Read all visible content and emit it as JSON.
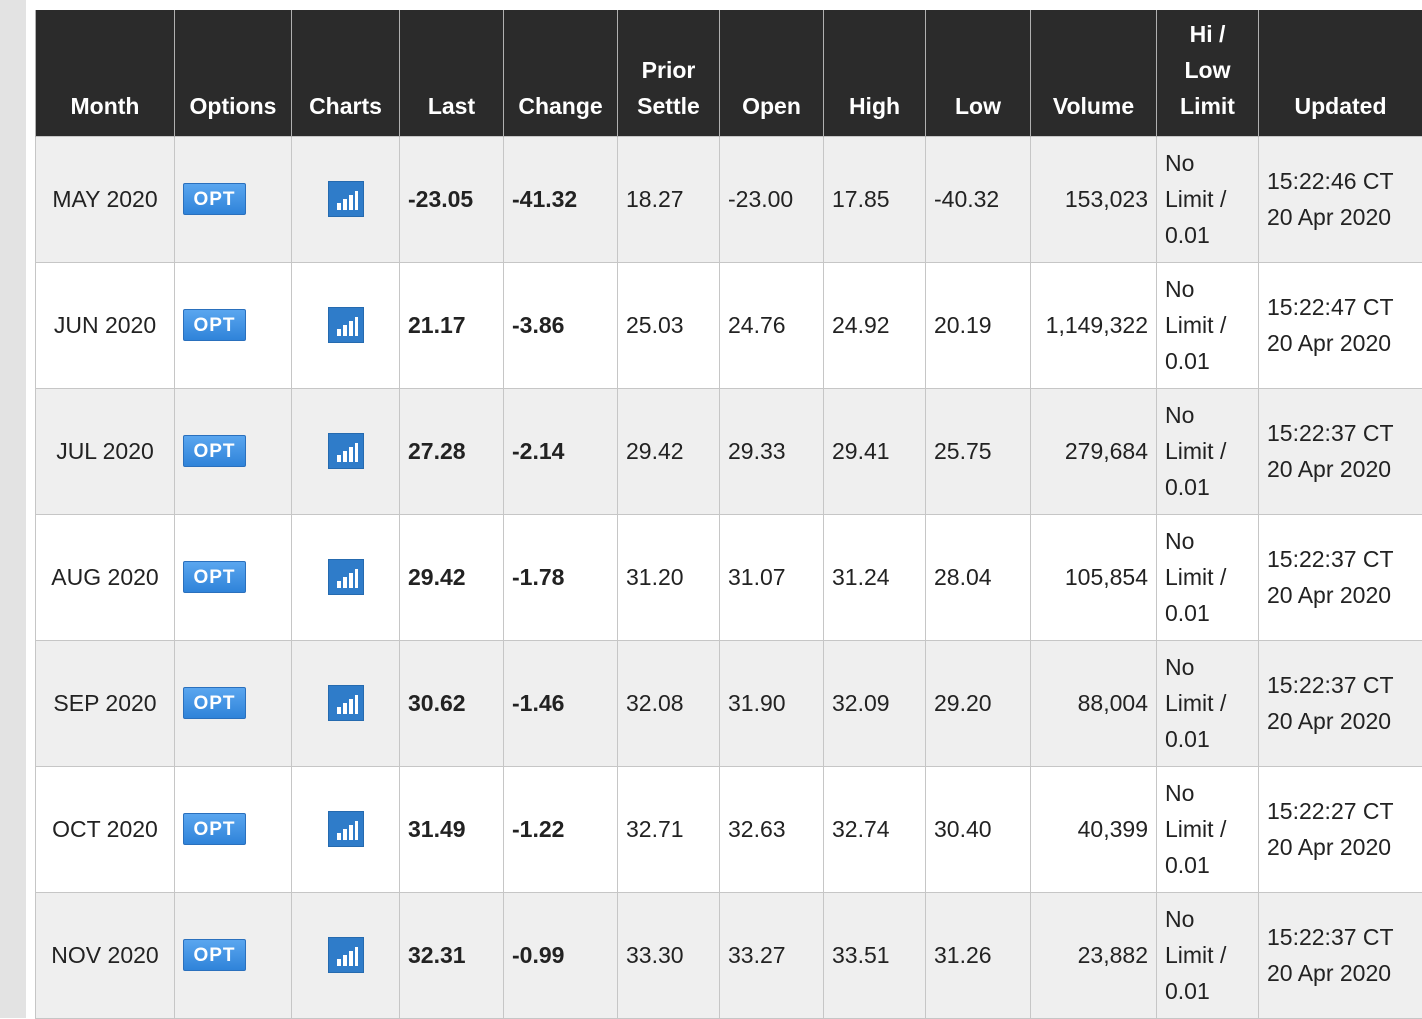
{
  "colors": {
    "header_bg": "#2b2b2b",
    "row_alt_bg": "#efefef",
    "negative": "#e8291c",
    "opt_button": "#2f83d9"
  },
  "headers": [
    {
      "key": "month",
      "lines": [
        "Month"
      ]
    },
    {
      "key": "options",
      "lines": [
        "Options"
      ]
    },
    {
      "key": "charts",
      "lines": [
        "Charts"
      ]
    },
    {
      "key": "last",
      "lines": [
        "Last"
      ]
    },
    {
      "key": "change",
      "lines": [
        "Change"
      ]
    },
    {
      "key": "prior_settle",
      "lines": [
        "Prior",
        "Settle"
      ]
    },
    {
      "key": "open",
      "lines": [
        "Open"
      ]
    },
    {
      "key": "high",
      "lines": [
        "High"
      ]
    },
    {
      "key": "low",
      "lines": [
        "Low"
      ]
    },
    {
      "key": "volume",
      "lines": [
        "Volume"
      ]
    },
    {
      "key": "hilow_limit",
      "lines": [
        "Hi /",
        "Low",
        "Limit"
      ]
    },
    {
      "key": "updated",
      "lines": [
        "Updated"
      ]
    }
  ],
  "options_button_label": "OPT",
  "charts_icon": "bar-chart-icon",
  "rows": [
    {
      "month": "MAY 2020",
      "last": "-23.05",
      "change": "-41.32",
      "prior_settle": "18.27",
      "open": "-23.00",
      "high": "17.85",
      "low": "-40.32",
      "volume": "153,023",
      "limit": [
        "No",
        "Limit /",
        "0.01"
      ],
      "updated": [
        "15:22:46 CT",
        "20 Apr 2020"
      ]
    },
    {
      "month": "JUN 2020",
      "last": "21.17",
      "change": "-3.86",
      "prior_settle": "25.03",
      "open": "24.76",
      "high": "24.92",
      "low": "20.19",
      "volume": "1,149,322",
      "limit": [
        "No",
        "Limit /",
        "0.01"
      ],
      "updated": [
        "15:22:47 CT",
        "20 Apr 2020"
      ]
    },
    {
      "month": "JUL 2020",
      "last": "27.28",
      "change": "-2.14",
      "prior_settle": "29.42",
      "open": "29.33",
      "high": "29.41",
      "low": "25.75",
      "volume": "279,684",
      "limit": [
        "No",
        "Limit /",
        "0.01"
      ],
      "updated": [
        "15:22:37 CT",
        "20 Apr 2020"
      ]
    },
    {
      "month": "AUG 2020",
      "last": "29.42",
      "change": "-1.78",
      "prior_settle": "31.20",
      "open": "31.07",
      "high": "31.24",
      "low": "28.04",
      "volume": "105,854",
      "limit": [
        "No",
        "Limit /",
        "0.01"
      ],
      "updated": [
        "15:22:37 CT",
        "20 Apr 2020"
      ]
    },
    {
      "month": "SEP 2020",
      "last": "30.62",
      "change": "-1.46",
      "prior_settle": "32.08",
      "open": "31.90",
      "high": "32.09",
      "low": "29.20",
      "volume": "88,004",
      "limit": [
        "No",
        "Limit /",
        "0.01"
      ],
      "updated": [
        "15:22:37 CT",
        "20 Apr 2020"
      ]
    },
    {
      "month": "OCT 2020",
      "last": "31.49",
      "change": "-1.22",
      "prior_settle": "32.71",
      "open": "32.63",
      "high": "32.74",
      "low": "30.40",
      "volume": "40,399",
      "limit": [
        "No",
        "Limit /",
        "0.01"
      ],
      "updated": [
        "15:22:27 CT",
        "20 Apr 2020"
      ]
    },
    {
      "month": "NOV 2020",
      "last": "32.31",
      "change": "-0.99",
      "prior_settle": "33.30",
      "open": "33.27",
      "high": "33.51",
      "low": "31.26",
      "volume": "23,882",
      "limit": [
        "No",
        "Limit /",
        "0.01"
      ],
      "updated": [
        "15:22:37 CT",
        "20 Apr 2020"
      ]
    }
  ]
}
